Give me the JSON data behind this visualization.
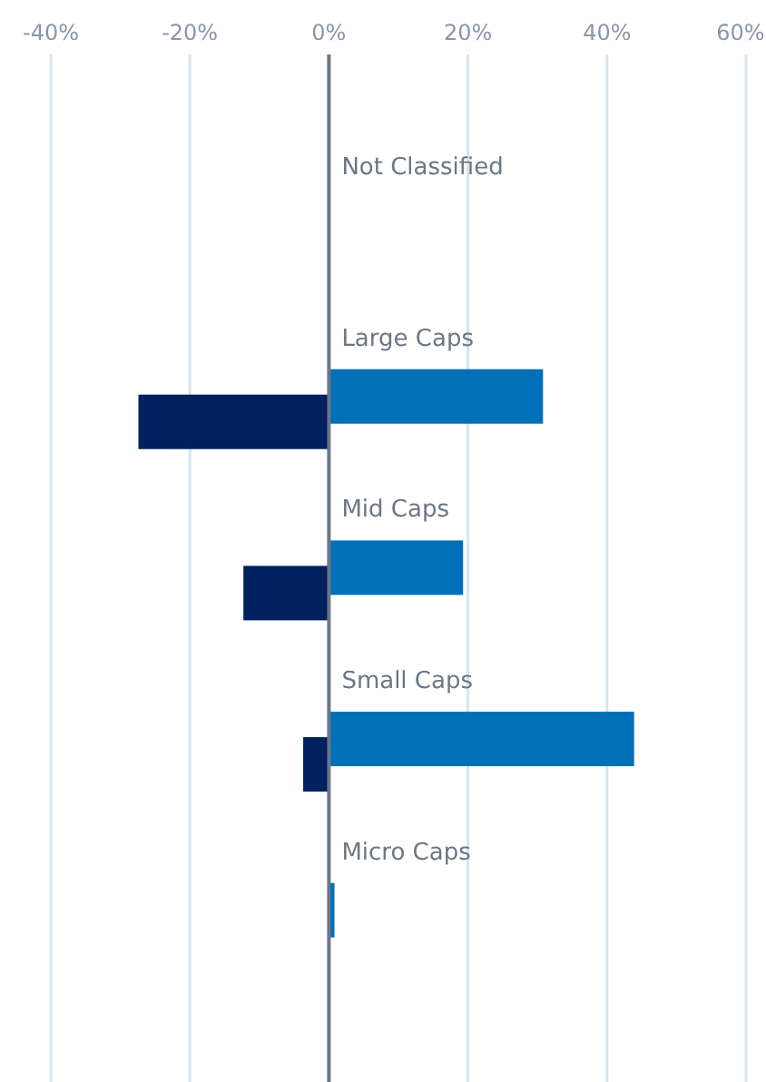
{
  "chart_data": {
    "type": "bar",
    "orientation": "horizontal",
    "categories": [
      "Not Classified",
      "Large Caps",
      "Mid Caps",
      "Small Caps",
      "Micro Caps"
    ],
    "series": [
      {
        "color": "#0070b8",
        "values": [
          0,
          30.8,
          19.3,
          43.9,
          0.8
        ]
      },
      {
        "color": "#002060",
        "values": [
          0,
          -27.4,
          -12.3,
          -3.7,
          0
        ]
      }
    ],
    "xlim": [
      -40,
      60
    ],
    "xticks": [
      {
        "value": -40,
        "label": "-40%"
      },
      {
        "value": -20,
        "label": "-20%"
      },
      {
        "value": 0,
        "label": "0%"
      },
      {
        "value": 20,
        "label": "20%"
      },
      {
        "value": 40,
        "label": "40%"
      },
      {
        "value": 60,
        "label": "60%"
      }
    ],
    "grid": "x"
  }
}
